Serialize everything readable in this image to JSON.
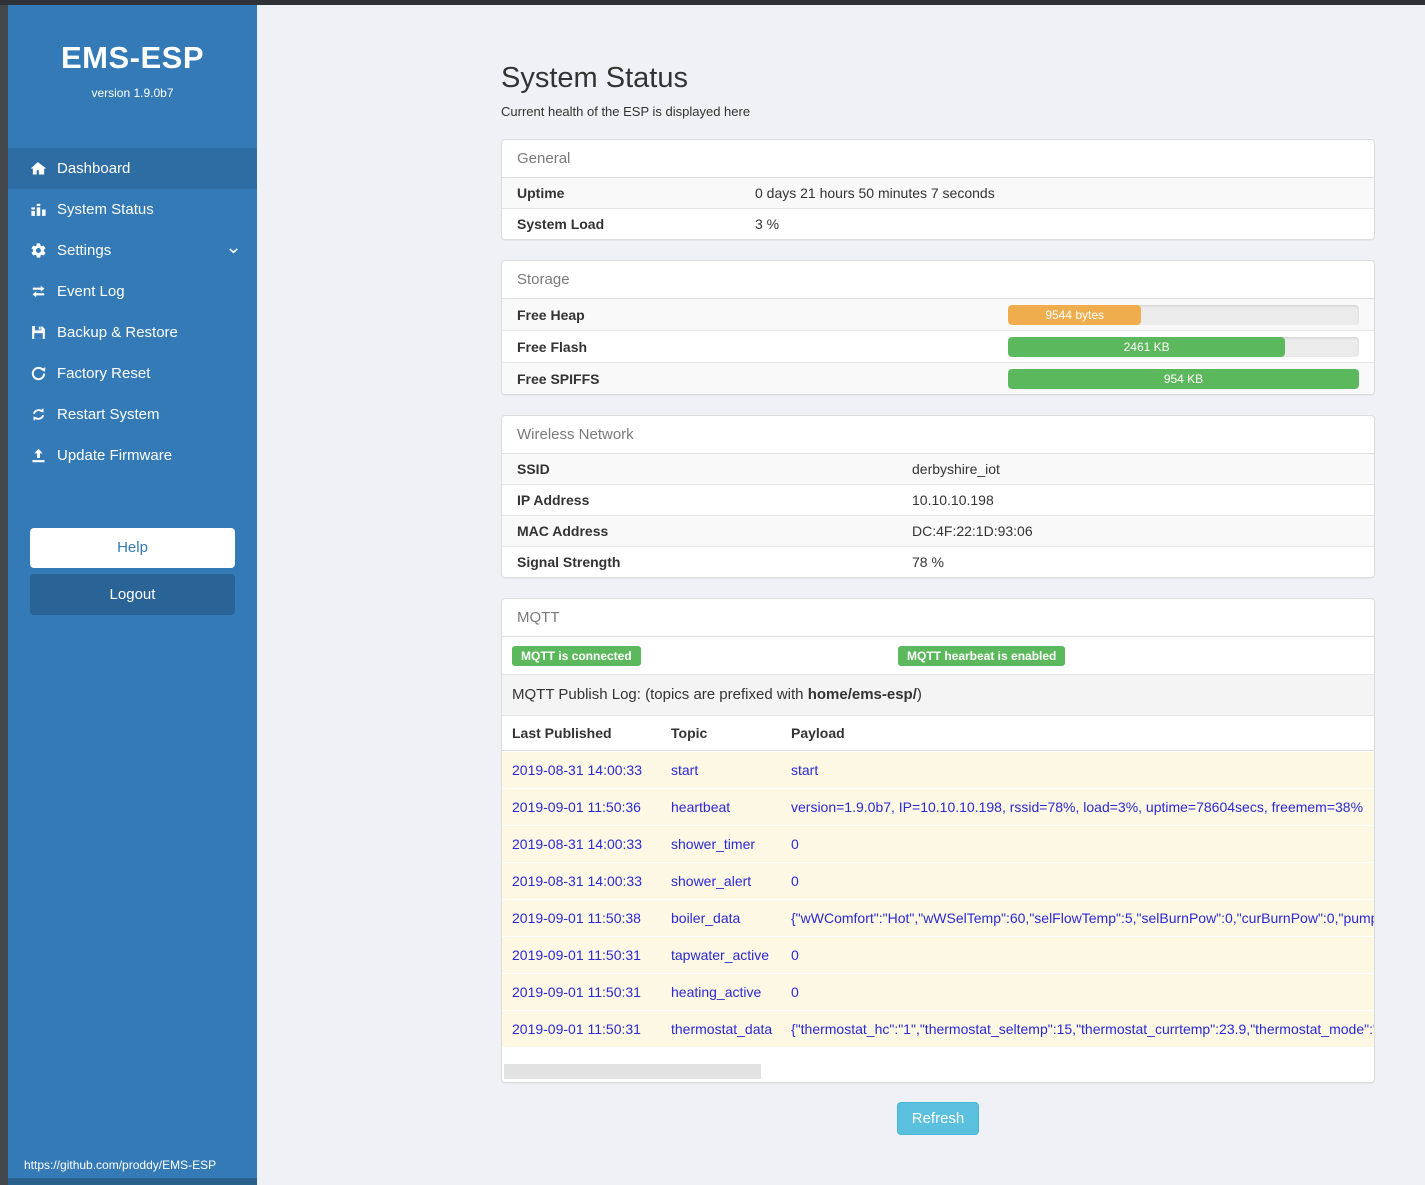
{
  "sidebar": {
    "title": "EMS-ESP",
    "version": "version 1.9.0b7",
    "items": [
      {
        "label": "Dashboard",
        "icon": "home-icon",
        "active": true
      },
      {
        "label": "System Status",
        "icon": "system-status-icon"
      },
      {
        "label": "Settings",
        "icon": "gear-icon",
        "chevron": "down"
      },
      {
        "label": "Event Log",
        "icon": "swap-arrows-icon"
      },
      {
        "label": "Backup & Restore",
        "icon": "floppy-icon"
      },
      {
        "label": "Factory Reset",
        "icon": "rotate-ccw-icon"
      },
      {
        "label": "Restart System",
        "icon": "refresh-icon"
      },
      {
        "label": "Update Firmware",
        "icon": "upload-icon"
      }
    ],
    "help_label": "Help",
    "logout_label": "Logout",
    "footer_link": "https://github.com/proddy/EMS-ESP"
  },
  "page": {
    "title": "System Status",
    "subtitle": "Current health of the ESP is displayed here",
    "refresh_label": "Refresh"
  },
  "panels": {
    "general": {
      "title": "General",
      "rows": [
        {
          "label": "Uptime",
          "value": "0 days 21 hours 50 minutes 7 seconds"
        },
        {
          "label": "System Load",
          "value": "3 %"
        }
      ]
    },
    "storage": {
      "title": "Storage",
      "rows": [
        {
          "label": "Free Heap",
          "value": "9544 bytes",
          "percent": 38,
          "color": "#f0ad4e"
        },
        {
          "label": "Free Flash",
          "value": "2461 KB",
          "percent": 79,
          "color": "#5cb85c"
        },
        {
          "label": "Free SPIFFS",
          "value": "954 KB",
          "percent": 100,
          "color": "#5cb85c"
        }
      ]
    },
    "wireless": {
      "title": "Wireless Network",
      "rows": [
        {
          "label": "SSID",
          "value": "derbyshire_iot"
        },
        {
          "label": "IP Address",
          "value": "10.10.10.198"
        },
        {
          "label": "MAC Address",
          "value": "DC:4F:22:1D:93:06"
        },
        {
          "label": "Signal Strength",
          "value": "78 %"
        }
      ]
    },
    "mqtt": {
      "title": "MQTT",
      "badges": [
        "MQTT is connected",
        "MQTT hearbeat is enabled"
      ],
      "log_title_prefix": "MQTT Publish Log: (topics are prefixed with ",
      "log_title_bold": "home/ems-esp/",
      "log_title_suffix": ")",
      "table": {
        "headers": [
          "Last Published",
          "Topic",
          "Payload"
        ],
        "rows": [
          {
            "time": "2019-08-31 14:00:33",
            "topic": "start",
            "payload": "start"
          },
          {
            "time": "2019-09-01 11:50:36",
            "topic": "heartbeat",
            "payload": "version=1.9.0b7, IP=10.10.10.198, rssid=78%, load=3%, uptime=78604secs, freemem=38%"
          },
          {
            "time": "2019-08-31 14:00:33",
            "topic": "shower_timer",
            "payload": "0"
          },
          {
            "time": "2019-08-31 14:00:33",
            "topic": "shower_alert",
            "payload": "0"
          },
          {
            "time": "2019-09-01 11:50:38",
            "topic": "boiler_data",
            "payload": "{\"wWComfort\":\"Hot\",\"wWSelTemp\":60,\"selFlowTemp\":5,\"selBurnPow\":0,\"curBurnPow\":0,\"pump"
          },
          {
            "time": "2019-09-01 11:50:31",
            "topic": "tapwater_active",
            "payload": "0"
          },
          {
            "time": "2019-09-01 11:50:31",
            "topic": "heating_active",
            "payload": "0"
          },
          {
            "time": "2019-09-01 11:50:31",
            "topic": "thermostat_data",
            "payload": "{\"thermostat_hc\":\"1\",\"thermostat_seltemp\":15,\"thermostat_currtemp\":23.9,\"thermostat_mode\":\""
          }
        ]
      }
    }
  },
  "colors": {
    "sidebar_blue": "#337ab7",
    "active_item_blue": "#2d6da3",
    "badge_green": "#5cb85c",
    "bar_orange": "#f0ad4e",
    "bar_green": "#5cb85c",
    "refresh_blue": "#5bc0de",
    "log_row_beige": "#fcf8e3",
    "log_text_blue": "#2b28d5"
  }
}
